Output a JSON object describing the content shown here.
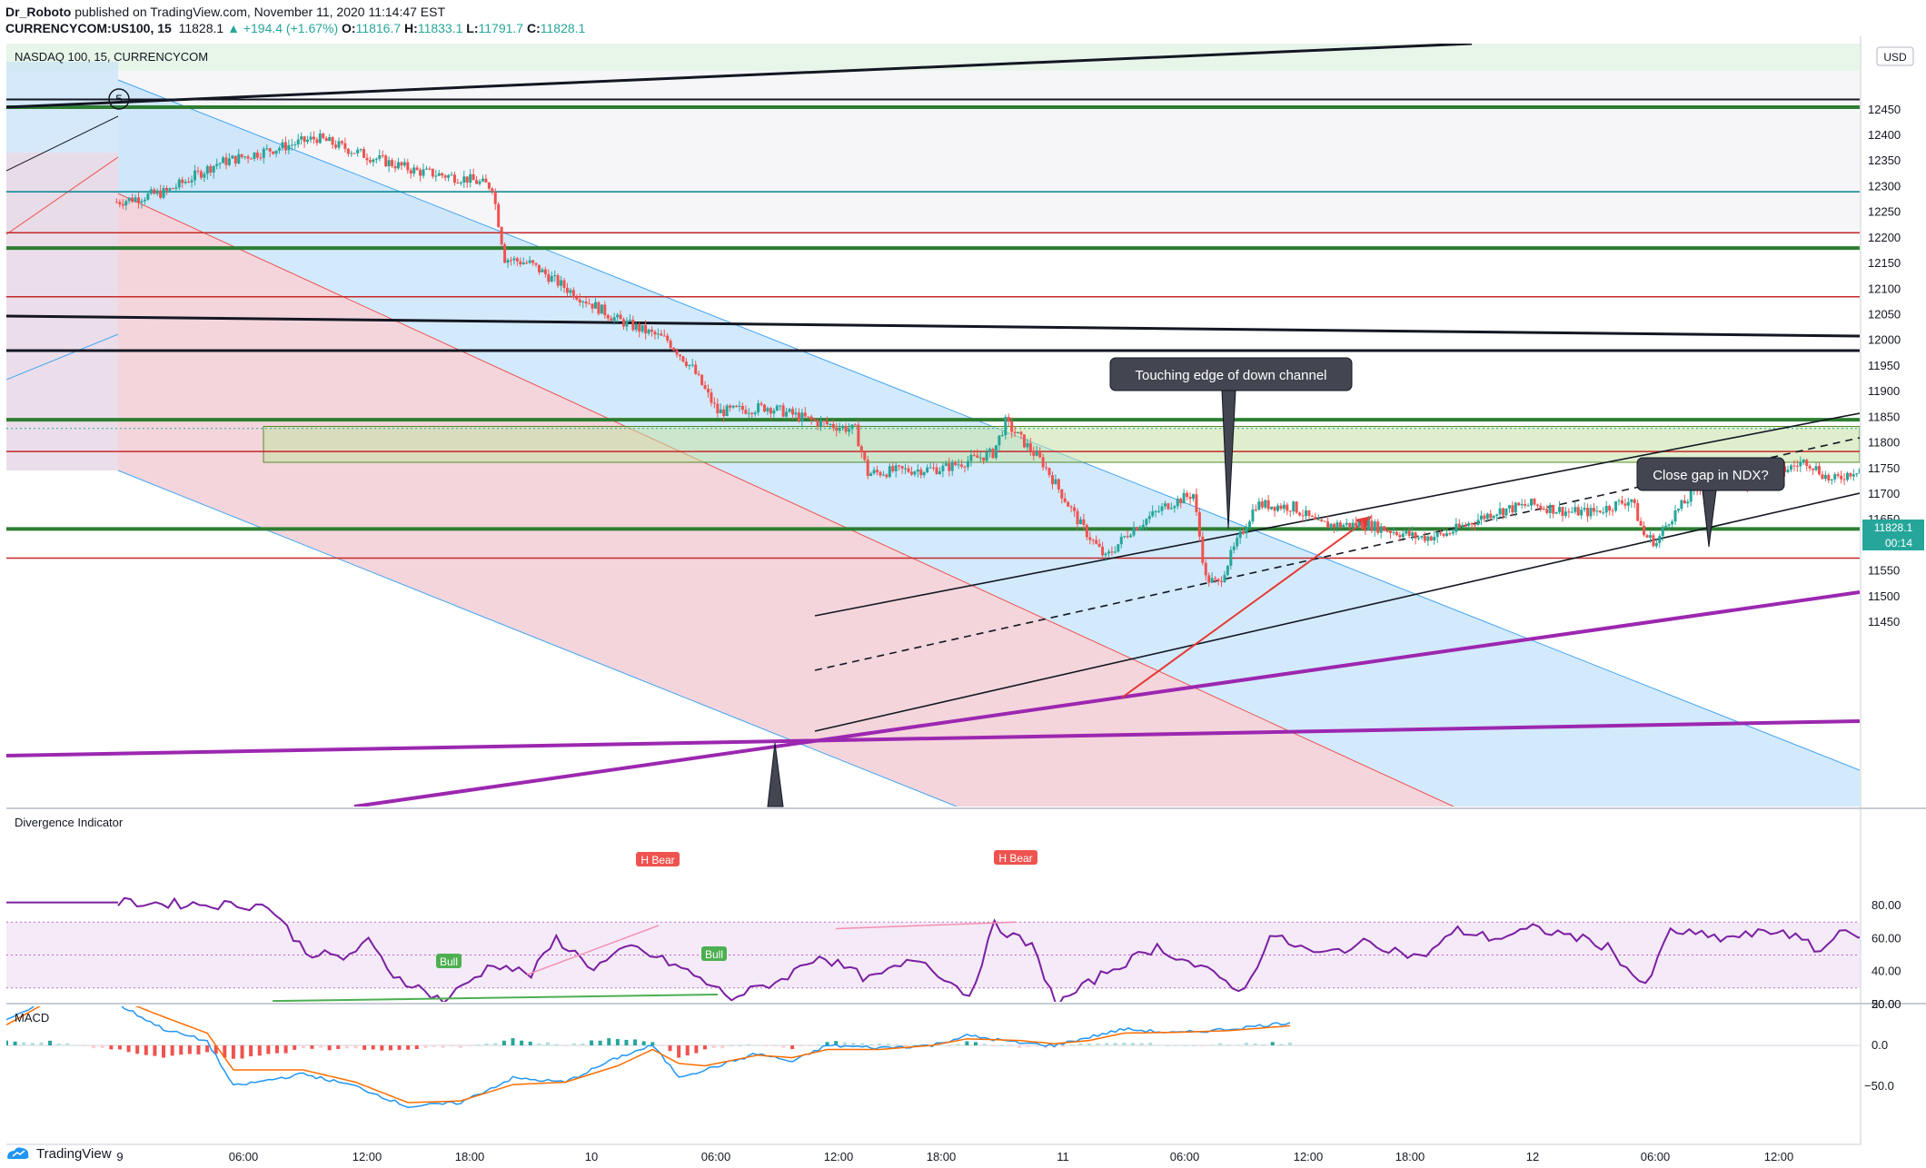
{
  "header": {
    "author": "Dr_Roboto",
    "published_text": "published on TradingView.com, November 11, 2020 11:14:47 EST",
    "symbol": "CURRENCYCOM:US100, 15",
    "last": "11828.1",
    "change": "▲ +194.4 (+1.67%)",
    "open_label": "O:",
    "open": "11816.7",
    "high_label": "H:",
    "high": "11833.1",
    "low_label": "L:",
    "low": "11791.7",
    "close_label": "C:",
    "close": "11828.1"
  },
  "pane_labels": {
    "main": "NASDAQ 100, 15, CURRENCYCOM",
    "divergence": "Divergence Indicator",
    "macd": "MACD"
  },
  "currency_badge": "USD",
  "price_badge": "11828.1",
  "countdown_badge": "00:14",
  "annotations": {
    "wave_label": "5",
    "callout_channel": "Touching edge of down channel",
    "callout_gap": "Close gap in NDX?",
    "bull_label": "Bull",
    "bear_label": "H Bear"
  },
  "footer": {
    "brand": "TradingView"
  },
  "colors": {
    "up": "#26a69a",
    "down": "#ef5350",
    "purple_trendline": "#9c27b0",
    "green_level": "#2e7d32",
    "red_level": "#c62828",
    "channel_blue": "#bbdefb",
    "channel_red": "#ffcdd2",
    "rsi_line": "#7b1fa2",
    "macd_line": "#2196f3",
    "signal_line": "#ff6d00"
  },
  "chart_data": [
    {
      "type": "line",
      "title": "NASDAQ 100, 15, CURRENCYCOM",
      "xlabel": "",
      "ylabel": "USD",
      "ylim": [
        11410,
        12515
      ],
      "x_ticks": [
        "9",
        "06:00",
        "12:00",
        "18:00",
        "10",
        "06:00",
        "12:00",
        "18:00",
        "11",
        "06:00",
        "12:00",
        "18:00",
        "12",
        "06:00",
        "12:00"
      ],
      "y_ticks": [
        11450,
        11500,
        11550,
        11600,
        11650,
        11700,
        11750,
        11800,
        11850,
        11900,
        11950,
        12000,
        12050,
        12100,
        12150,
        12200,
        12250,
        12300,
        12350,
        12400,
        12450
      ],
      "price_path": [
        [
          0,
          12270
        ],
        [
          4,
          12290
        ],
        [
          8,
          12345
        ],
        [
          12,
          12370
        ],
        [
          16,
          12395
        ],
        [
          20,
          12360
        ],
        [
          24,
          12330
        ],
        [
          28,
          12315
        ],
        [
          30,
          12300
        ],
        [
          31,
          12160
        ],
        [
          33,
          12150
        ],
        [
          36,
          12100
        ],
        [
          40,
          12040
        ],
        [
          44,
          12000
        ],
        [
          46,
          11945
        ],
        [
          48,
          11860
        ],
        [
          52,
          11870
        ],
        [
          56,
          11840
        ],
        [
          59,
          11825
        ],
        [
          60,
          11740
        ],
        [
          62,
          11745
        ],
        [
          66,
          11750
        ],
        [
          70,
          11780
        ],
        [
          71,
          11840
        ],
        [
          74,
          11760
        ],
        [
          77,
          11640
        ],
        [
          79,
          11575
        ],
        [
          81,
          11630
        ],
        [
          84,
          11680
        ],
        [
          86,
          11700
        ],
        [
          87,
          11535
        ],
        [
          88,
          11525
        ],
        [
          89,
          11580
        ],
        [
          91,
          11680
        ],
        [
          94,
          11675
        ],
        [
          96,
          11640
        ],
        [
          100,
          11640
        ],
        [
          104,
          11615
        ],
        [
          106,
          11620
        ],
        [
          110,
          11665
        ],
        [
          113,
          11680
        ],
        [
          116,
          11665
        ],
        [
          118,
          11665
        ],
        [
          121,
          11690
        ],
        [
          122,
          11620
        ],
        [
          123,
          11605
        ],
        [
          124,
          11650
        ],
        [
          127,
          11730
        ],
        [
          130,
          11720
        ],
        [
          133,
          11745
        ],
        [
          135,
          11765
        ],
        [
          137,
          11725
        ],
        [
          140,
          11760
        ],
        [
          142,
          11800
        ],
        [
          143,
          11805
        ],
        [
          145,
          11790
        ],
        [
          146,
          11820
        ],
        [
          147,
          11828
        ]
      ],
      "horizontal_levels": [
        12470,
        12455,
        12290,
        12210,
        12180,
        12085,
        11980,
        11845,
        11783,
        11632,
        11575
      ],
      "gap_zone": [
        11762,
        11832
      ],
      "callouts": [
        "Touching edge of down channel",
        "Close gap in NDX?"
      ]
    },
    {
      "type": "line",
      "title": "Divergence Indicator",
      "ylim": [
        10,
        90
      ],
      "y_ticks": [
        20,
        40,
        60,
        80
      ],
      "band": [
        30,
        70
      ],
      "values": [
        [
          0,
          82
        ],
        [
          12,
          80
        ],
        [
          15,
          52
        ],
        [
          18,
          48
        ],
        [
          20,
          58
        ],
        [
          22,
          38
        ],
        [
          26,
          22
        ],
        [
          30,
          45
        ],
        [
          33,
          38
        ],
        [
          35,
          60
        ],
        [
          38,
          42
        ],
        [
          41,
          55
        ],
        [
          45,
          42
        ],
        [
          49,
          24
        ],
        [
          53,
          35
        ],
        [
          56,
          50
        ],
        [
          60,
          35
        ],
        [
          64,
          48
        ],
        [
          68,
          25
        ],
        [
          70,
          68
        ],
        [
          73,
          55
        ],
        [
          75,
          20
        ],
        [
          79,
          40
        ],
        [
          83,
          55
        ],
        [
          87,
          40
        ],
        [
          90,
          28
        ],
        [
          92,
          62
        ],
        [
          96,
          50
        ],
        [
          100,
          58
        ],
        [
          104,
          48
        ],
        [
          107,
          65
        ],
        [
          110,
          60
        ],
        [
          113,
          66
        ],
        [
          116,
          62
        ],
        [
          119,
          55
        ],
        [
          122,
          30
        ],
        [
          124,
          65
        ],
        [
          128,
          60
        ],
        [
          133,
          65
        ],
        [
          136,
          52
        ],
        [
          138,
          68
        ],
        [
          140,
          55
        ],
        [
          143,
          70
        ],
        [
          146,
          66
        ],
        [
          147,
          64
        ]
      ],
      "signals": [
        "H Bear",
        "H Bear",
        "Bull",
        "Bull"
      ]
    },
    {
      "type": "line",
      "title": "MACD",
      "ylim": [
        -75,
        70
      ],
      "y_ticks": [
        50.0,
        0.0,
        -50.0
      ],
      "series": [
        {
          "values": [
            [
              0,
              30
            ],
            [
              5,
              60
            ],
            [
              12,
              55
            ],
            [
              18,
              20
            ],
            [
              23,
              5
            ],
            [
              26,
              -50
            ],
            [
              34,
              -35
            ],
            [
              40,
              -50
            ],
            [
              46,
              -75
            ],
            [
              52,
              -70
            ],
            [
              58,
              -40
            ],
            [
              64,
              -45
            ],
            [
              70,
              -15
            ],
            [
              74,
              0
            ],
            [
              77,
              -38
            ],
            [
              80,
              -30
            ],
            [
              86,
              -10
            ],
            [
              90,
              -20
            ],
            [
              94,
              0
            ],
            [
              100,
              -3
            ],
            [
              106,
              0
            ],
            [
              110,
              12
            ],
            [
              116,
              3
            ],
            [
              120,
              0
            ],
            [
              124,
              10
            ],
            [
              128,
              20
            ],
            [
              134,
              15
            ],
            [
              140,
              20
            ],
            [
              147,
              28
            ]
          ]
        },
        {
          "values": [
            [
              0,
              25
            ],
            [
              5,
              55
            ],
            [
              12,
              60
            ],
            [
              18,
              35
            ],
            [
              23,
              15
            ],
            [
              26,
              -30
            ],
            [
              34,
              -30
            ],
            [
              40,
              -45
            ],
            [
              46,
              -70
            ],
            [
              52,
              -68
            ],
            [
              58,
              -48
            ],
            [
              64,
              -45
            ],
            [
              70,
              -25
            ],
            [
              74,
              -5
            ],
            [
              77,
              -22
            ],
            [
              80,
              -25
            ],
            [
              86,
              -12
            ],
            [
              90,
              -15
            ],
            [
              94,
              -5
            ],
            [
              100,
              -5
            ],
            [
              106,
              0
            ],
            [
              110,
              8
            ],
            [
              116,
              6
            ],
            [
              120,
              2
            ],
            [
              124,
              6
            ],
            [
              128,
              15
            ],
            [
              134,
              16
            ],
            [
              140,
              18
            ],
            [
              147,
              24
            ]
          ]
        }
      ]
    }
  ]
}
